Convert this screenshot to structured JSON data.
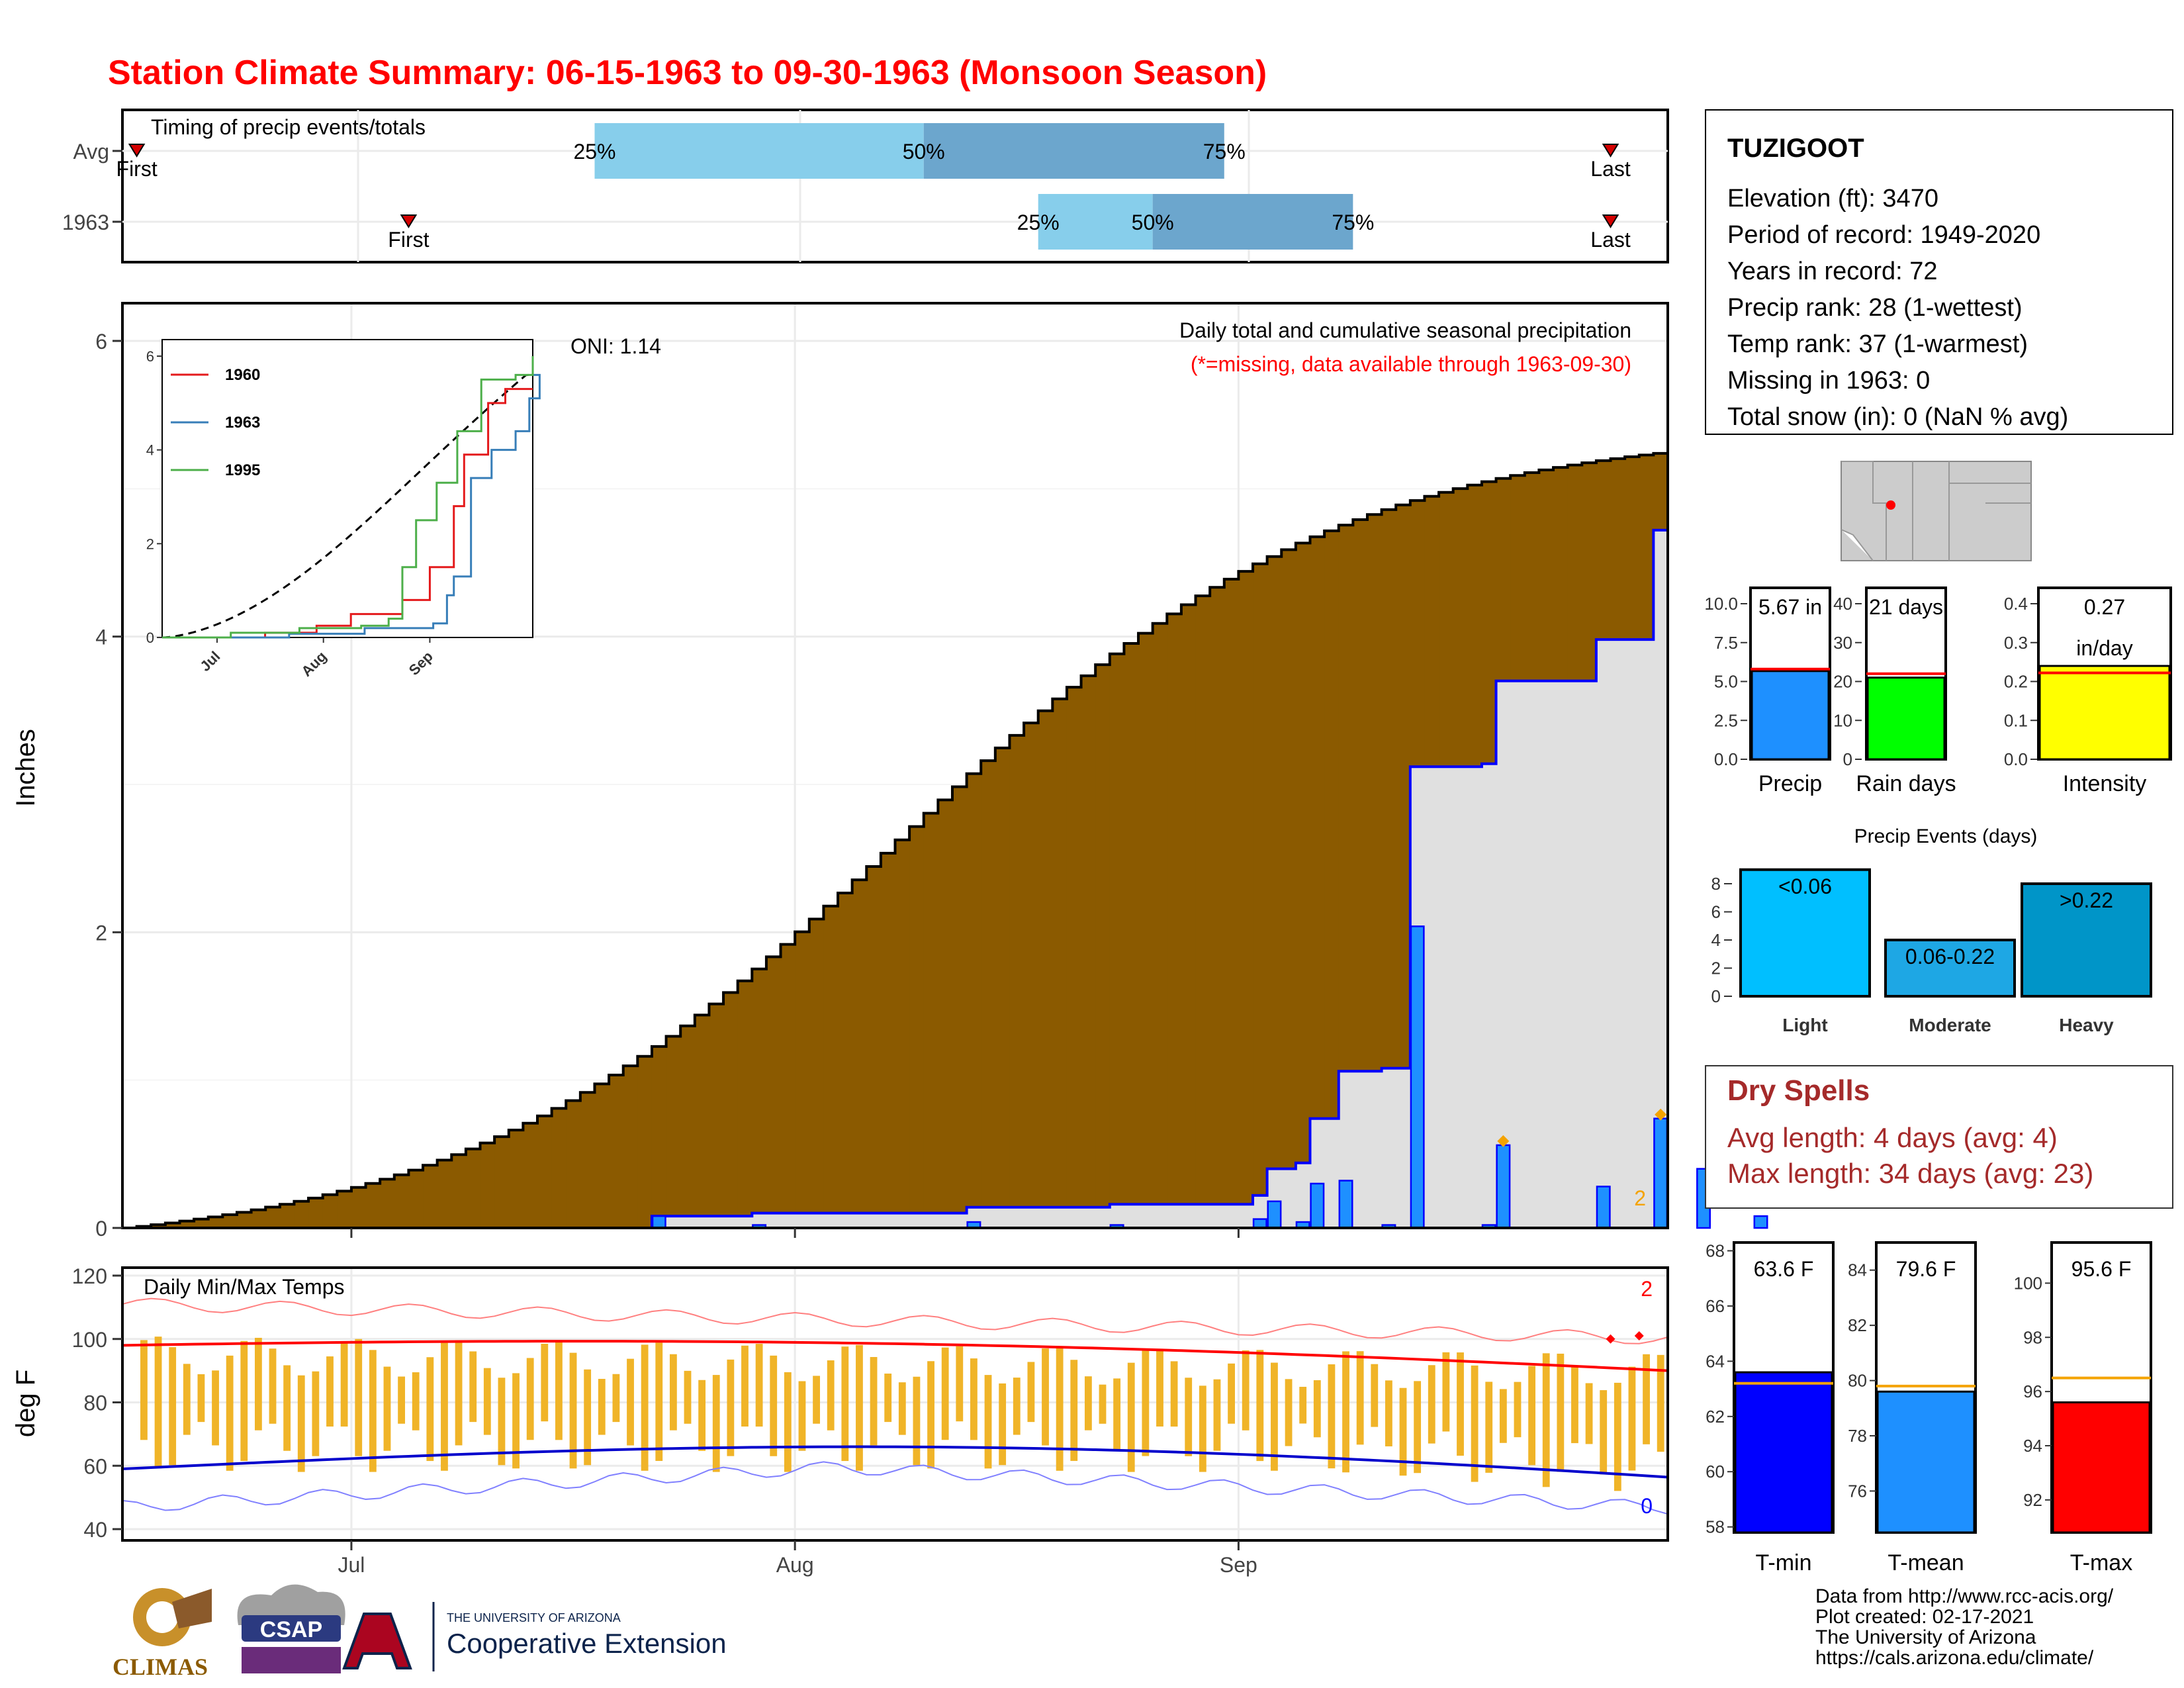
{
  "title": "Station Climate Summary: 06-15-1963 to 09-30-1963 (Monsoon Season)",
  "colors": {
    "title": "#ff0000",
    "brown": "#8b5a00",
    "green": "#008000",
    "blue_line": "#0000ff",
    "bar_blue": "#1e90ff",
    "gray_fill": "#e0e0e0",
    "orange": "#f4a300",
    "red": "#ff0000",
    "dry_spell": "#a52a2a",
    "light_event": "#00bfff",
    "mod_event": "#1ea7e4",
    "heavy_event": "#0095c8",
    "yellow": "#ffff00",
    "green_bar": "#00ff00",
    "tmin": "#0000ff",
    "tmean": "#1e90ff",
    "tmax": "#ff0000"
  },
  "timing": {
    "title": "Timing of precip events/totals",
    "rows": [
      {
        "label": "Avg",
        "first": "First",
        "last": "Last",
        "p25": "25%",
        "p50": "50%",
        "p75": "75%",
        "first_day": 1,
        "p25_day": 33,
        "p50_day": 56,
        "p75_day": 77,
        "last_day": 104
      },
      {
        "label": "1963",
        "first": "First",
        "last": "Last",
        "p25": "25%",
        "p50": "50%",
        "p75": "75%",
        "first_day": 20,
        "p25_day": 64,
        "p50_day": 72,
        "p75_day": 86,
        "last_day": 104
      }
    ]
  },
  "station": {
    "name": "TUZIGOOT",
    "lines": [
      "Elevation (ft): 3470",
      "Period of record: 1949-2020",
      "Years in record: 72",
      "Precip rank: 28 (1-wettest)",
      "Temp rank: 37 (1-warmest)",
      "Missing in 1963: 0",
      "Total snow (in): 0 (NaN % avg)"
    ]
  },
  "main_chart": {
    "ylabel": "Inches",
    "annotation": "Daily total and cumulative seasonal precipitation",
    "missing_note": "(*=missing, data available through 1963-09-30)",
    "oni": "ONI: 1.14",
    "corner_count": "2",
    "month_ticks": [
      "Jul",
      "Aug",
      "Sep"
    ],
    "yticks": [
      "0",
      "2",
      "4",
      "6"
    ]
  },
  "inset": {
    "legend": [
      "1960",
      "1963",
      "1995"
    ],
    "yticks": [
      "0",
      "2",
      "4",
      "6"
    ],
    "xticks": [
      "Jul",
      "Aug",
      "Sep"
    ]
  },
  "temp_chart": {
    "title": "Daily Min/Max Temps",
    "ylabel": "deg F",
    "yticks": [
      "40",
      "60",
      "80",
      "100",
      "120"
    ],
    "xticks": [
      "Jul",
      "Aug",
      "Sep"
    ],
    "count_high": "2",
    "count_low": "0"
  },
  "precip_bars": {
    "panels": [
      {
        "label": "Precip",
        "value_text": "5.67 in",
        "value": 5.67,
        "avg": 5.8,
        "max": 10,
        "ticks": [
          "0.0",
          "2.5",
          "5.0",
          "7.5",
          "10.0"
        ]
      },
      {
        "label": "Rain days",
        "value_text": "21 days",
        "value": 21,
        "avg": 22,
        "max": 40,
        "ticks": [
          "0",
          "10",
          "20",
          "30",
          "40"
        ]
      },
      {
        "label": "Intensity",
        "value_text": "0.27",
        "value_text2": "in/day",
        "value": 0.27,
        "avg": 0.25,
        "max": 0.45,
        "ticks": [
          "0.0",
          "0.1",
          "0.2",
          "0.3",
          "0.4"
        ]
      }
    ]
  },
  "events": {
    "title": "Precip Events (days)",
    "ticks": [
      "0",
      "2",
      "4",
      "6",
      "8"
    ],
    "bars": [
      {
        "label": "Light",
        "text": "<0.06",
        "value": 9
      },
      {
        "label": "Moderate",
        "text": "0.06-0.22",
        "value": 4
      },
      {
        "label": "Heavy",
        "text": ">0.22",
        "value": 8
      }
    ]
  },
  "dry_spells": {
    "title": "Dry Spells",
    "avg_line": "Avg length: 4 days (avg: 4)",
    "max_line": "Max length: 34 days (avg: 23)"
  },
  "temp_bars": {
    "panels": [
      {
        "label": "T-min",
        "value_text": "63.6 F",
        "value": 63.6,
        "avg": 63.2,
        "min": 57.8,
        "max": 68.3,
        "ticks": [
          "58",
          "60",
          "62",
          "64",
          "66",
          "68"
        ]
      },
      {
        "label": "T-mean",
        "value_text": "79.6 F",
        "value": 79.6,
        "avg": 79.8,
        "min": 74.5,
        "max": 85,
        "ticks": [
          "76",
          "78",
          "80",
          "82",
          "84"
        ]
      },
      {
        "label": "T-max",
        "value_text": "95.6 F",
        "value": 95.6,
        "avg": 96.5,
        "min": 90.8,
        "max": 101.5,
        "ticks": [
          "92",
          "94",
          "96",
          "98",
          "100"
        ]
      }
    ]
  },
  "footer": {
    "lines": [
      "Data from http://www.rcc-acis.org/",
      "Plot created: 02-17-2021",
      "The University of Arizona",
      "https://cals.arizona.edu/climate/"
    ],
    "logos": {
      "climas": "CLIMAS",
      "csap": "CSAP",
      "ua_small": "THE UNIVERSITY OF ARIZONA",
      "ua_big": "Cooperative Extension"
    }
  },
  "chart_data": {
    "type": "area",
    "x_start": "1963-06-15",
    "x_end": "1963-09-30",
    "ylim": [
      0,
      6.2
    ],
    "series": [
      {
        "name": "1963",
        "daily_events": [
          [
            37,
            0.08
          ],
          [
            44,
            0.02
          ],
          [
            59,
            0.04
          ],
          [
            69,
            0.02
          ],
          [
            79,
            0.06
          ],
          [
            80,
            0.18
          ],
          [
            82,
            0.04
          ],
          [
            83,
            0.3
          ],
          [
            85,
            0.32
          ],
          [
            88,
            0.02
          ],
          [
            90,
            2.04
          ],
          [
            95,
            0.02
          ],
          [
            96,
            0.56
          ],
          [
            103,
            0.28
          ],
          [
            107,
            0.74
          ],
          [
            110,
            0.4
          ],
          [
            114,
            0.08
          ]
        ]
      }
    ]
  }
}
